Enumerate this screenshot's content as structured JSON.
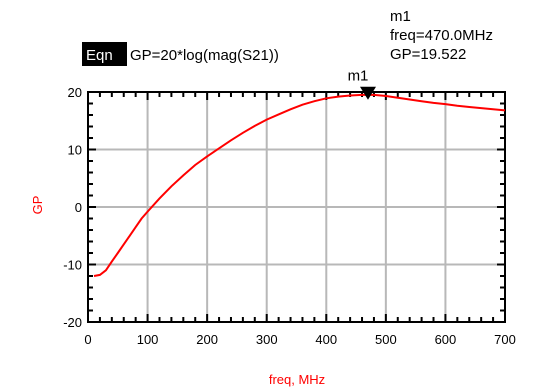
{
  "equation": {
    "tag": "Eqn",
    "text": "GP=20*log(mag(S21))"
  },
  "marker": {
    "name": "m1",
    "readout_name": "m1",
    "readout_freq": "freq=470.0MHz",
    "readout_value": "GP=19.522",
    "x": 470,
    "y": 19.522
  },
  "chart_data": {
    "type": "line",
    "xlabel": "freq, MHz",
    "ylabel": "GP",
    "xlim": [
      0,
      700
    ],
    "ylim": [
      -20,
      20
    ],
    "x_ticks": [
      0,
      100,
      200,
      300,
      400,
      500,
      600,
      700
    ],
    "y_ticks": [
      -20,
      -10,
      0,
      10,
      20
    ],
    "x_tick_labels": [
      "0",
      "100",
      "200",
      "300",
      "400",
      "500",
      "600",
      "700"
    ],
    "y_tick_labels": [
      "-20",
      "-10",
      "0",
      "10",
      "20"
    ],
    "grid": true,
    "series": [
      {
        "color": "#ff0000",
        "x": [
          10,
          20,
          30,
          40,
          50,
          60,
          70,
          80,
          90,
          100,
          120,
          140,
          160,
          180,
          200,
          220,
          240,
          260,
          280,
          300,
          320,
          340,
          360,
          380,
          400,
          420,
          440,
          460,
          470,
          480,
          500,
          520,
          540,
          560,
          580,
          600,
          620,
          640,
          660,
          680,
          700
        ],
        "y": [
          -12.0,
          -11.8,
          -11.0,
          -9.5,
          -8.0,
          -6.5,
          -5.0,
          -3.5,
          -2.0,
          -0.8,
          1.5,
          3.6,
          5.5,
          7.3,
          8.8,
          10.2,
          11.6,
          12.9,
          14.1,
          15.2,
          16.1,
          17.0,
          17.8,
          18.4,
          18.9,
          19.2,
          19.4,
          19.5,
          19.52,
          19.5,
          19.3,
          19.0,
          18.7,
          18.4,
          18.1,
          17.9,
          17.6,
          17.4,
          17.2,
          17.0,
          16.8
        ]
      }
    ],
    "marker_color": "#000000"
  }
}
